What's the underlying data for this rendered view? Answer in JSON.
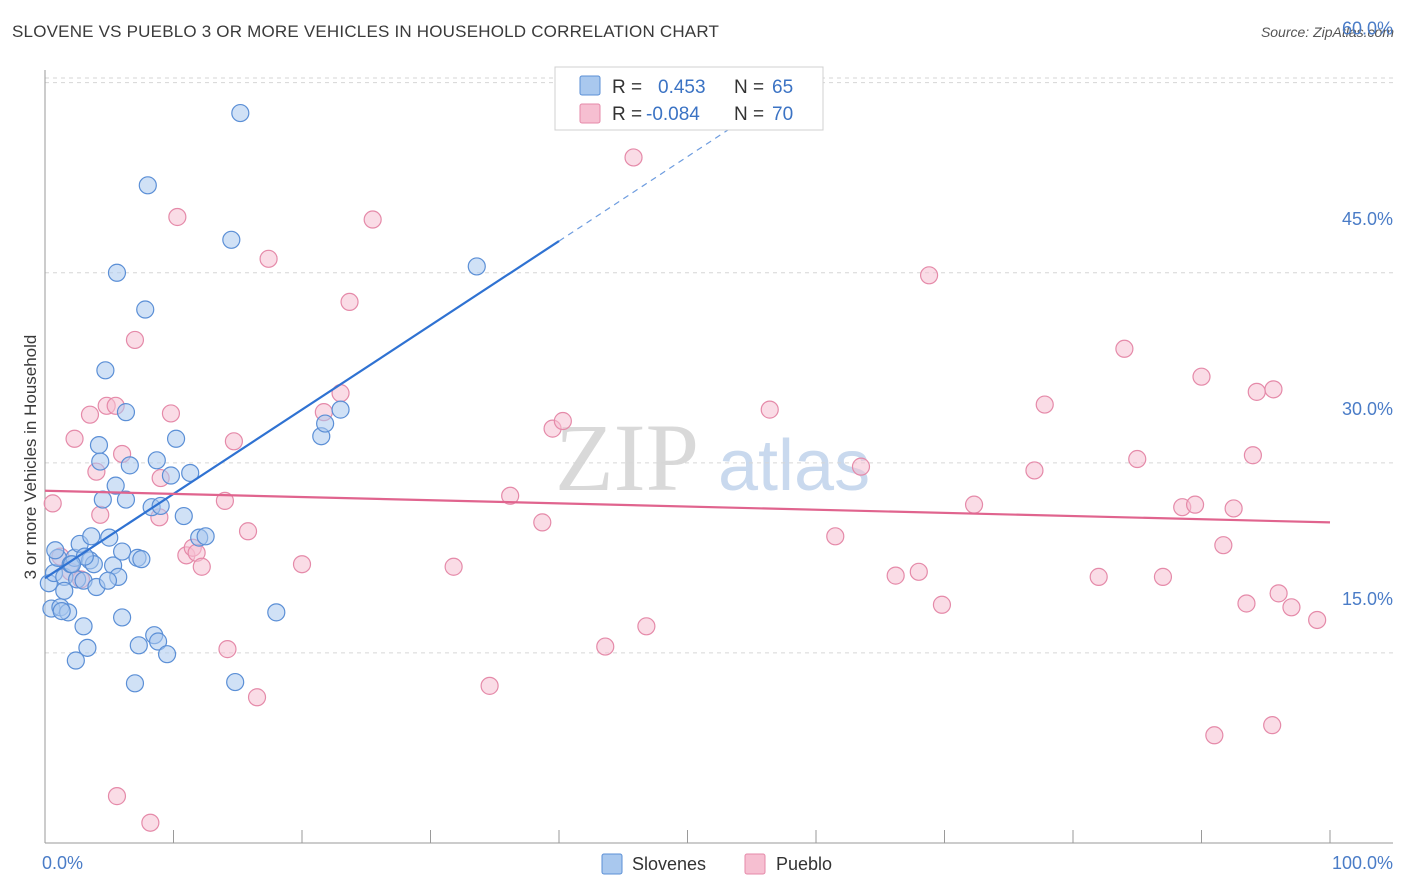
{
  "title": "SLOVENE VS PUEBLO 3 OR MORE VEHICLES IN HOUSEHOLD CORRELATION CHART",
  "source": "Source: ZipAtlas.com",
  "watermark": {
    "zip": "ZIP",
    "atlas": "atlas"
  },
  "colors": {
    "slovenes_fill": "#a9c8ee",
    "slovenes_stroke": "#5b8fd6",
    "slovenes_line": "#2f72d2",
    "pueblo_fill": "#f6bfd1",
    "pueblo_stroke": "#e58aa9",
    "pueblo_line": "#e0648e",
    "axis_label": "#4a7cc7"
  },
  "legend": {
    "rows": [
      {
        "r_label": "R =",
        "r_value": "0.453",
        "n_label": "N =",
        "n_value": "65"
      },
      {
        "r_label": "R =",
        "r_value": "-0.084",
        "n_label": "N =",
        "n_value": "70"
      }
    ]
  },
  "chart_data": {
    "type": "scatter",
    "title": "SLOVENE VS PUEBLO 3 OR MORE VEHICLES IN HOUSEHOLD CORRELATION CHART",
    "xlabel": "",
    "ylabel": "3 or more Vehicles in Household",
    "xlim": [
      0,
      100
    ],
    "ylim": [
      0,
      61
    ],
    "x_tick_labels": [
      "0.0%",
      "100.0%"
    ],
    "y_ticks": [
      15,
      30,
      45,
      60
    ],
    "y_tick_labels": [
      "15.0%",
      "30.0%",
      "45.0%",
      "60.0%"
    ],
    "legend_position": "bottom-center",
    "series": [
      {
        "name": "Slovenes",
        "trend": {
          "x0": 0,
          "y0": 20.9,
          "x1": 40,
          "y1": 47.5,
          "dashed_to_x": 55,
          "dashed_to_y": 57.5
        },
        "points": [
          [
            0.3,
            20.5
          ],
          [
            0.5,
            18.5
          ],
          [
            0.7,
            21.3
          ],
          [
            1.0,
            22.5
          ],
          [
            1.2,
            18.6
          ],
          [
            1.5,
            21.0
          ],
          [
            1.8,
            18.2
          ],
          [
            2.0,
            22.0
          ],
          [
            2.3,
            22.5
          ],
          [
            2.5,
            20.8
          ],
          [
            2.7,
            23.6
          ],
          [
            3.0,
            20.7
          ],
          [
            3.0,
            17.1
          ],
          [
            3.3,
            15.4
          ],
          [
            3.5,
            22.3
          ],
          [
            3.6,
            24.2
          ],
          [
            3.8,
            22.0
          ],
          [
            4.0,
            20.2
          ],
          [
            4.2,
            31.4
          ],
          [
            4.3,
            30.1
          ],
          [
            4.5,
            27.1
          ],
          [
            4.7,
            37.3
          ],
          [
            5.0,
            24.1
          ],
          [
            5.3,
            21.9
          ],
          [
            5.5,
            28.2
          ],
          [
            5.7,
            21.0
          ],
          [
            6.0,
            23.0
          ],
          [
            6.0,
            17.8
          ],
          [
            6.3,
            27.1
          ],
          [
            6.3,
            34.0
          ],
          [
            6.6,
            29.8
          ],
          [
            7.0,
            12.6
          ],
          [
            7.2,
            22.5
          ],
          [
            7.3,
            15.6
          ],
          [
            7.5,
            22.4
          ],
          [
            7.8,
            42.1
          ],
          [
            8.0,
            51.9
          ],
          [
            8.3,
            26.5
          ],
          [
            8.5,
            16.4
          ],
          [
            8.7,
            30.2
          ],
          [
            8.8,
            15.9
          ],
          [
            9.0,
            26.6
          ],
          [
            9.5,
            14.9
          ],
          [
            9.8,
            29.0
          ],
          [
            10.2,
            31.9
          ],
          [
            10.8,
            25.8
          ],
          [
            11.3,
            29.2
          ],
          [
            12.0,
            24.1
          ],
          [
            12.5,
            24.2
          ],
          [
            14.5,
            47.6
          ],
          [
            14.8,
            12.7
          ],
          [
            15.2,
            57.6
          ],
          [
            18.0,
            18.2
          ],
          [
            21.5,
            32.1
          ],
          [
            21.8,
            33.1
          ],
          [
            23.0,
            34.2
          ],
          [
            33.6,
            45.5
          ],
          [
            5.6,
            45.0
          ],
          [
            2.4,
            14.4
          ],
          [
            1.3,
            18.3
          ],
          [
            3.1,
            22.6
          ],
          [
            2.1,
            22.0
          ],
          [
            1.5,
            19.9
          ],
          [
            0.8,
            23.1
          ],
          [
            4.9,
            20.7
          ]
        ]
      },
      {
        "name": "Pueblo",
        "trend": {
          "x0": 0,
          "y0": 27.8,
          "x1": 100,
          "y1": 25.3
        },
        "points": [
          [
            0.6,
            26.8
          ],
          [
            1.2,
            22.6
          ],
          [
            2.0,
            21.4
          ],
          [
            2.3,
            31.9
          ],
          [
            2.8,
            20.8
          ],
          [
            3.5,
            33.8
          ],
          [
            4.0,
            29.3
          ],
          [
            4.3,
            25.9
          ],
          [
            4.8,
            34.5
          ],
          [
            5.5,
            34.5
          ],
          [
            5.6,
            3.7
          ],
          [
            6.0,
            30.7
          ],
          [
            7.0,
            39.7
          ],
          [
            8.2,
            1.6
          ],
          [
            8.9,
            25.7
          ],
          [
            9.0,
            28.8
          ],
          [
            9.8,
            33.9
          ],
          [
            10.3,
            49.4
          ],
          [
            11.0,
            22.7
          ],
          [
            11.5,
            23.3
          ],
          [
            11.8,
            22.9
          ],
          [
            12.2,
            21.8
          ],
          [
            14.0,
            27.0
          ],
          [
            14.2,
            15.3
          ],
          [
            14.7,
            31.7
          ],
          [
            15.8,
            24.6
          ],
          [
            16.5,
            11.5
          ],
          [
            17.4,
            46.1
          ],
          [
            20.0,
            22.0
          ],
          [
            21.7,
            34.0
          ],
          [
            23.0,
            35.5
          ],
          [
            23.7,
            42.7
          ],
          [
            25.5,
            49.2
          ],
          [
            31.8,
            21.8
          ],
          [
            34.6,
            12.4
          ],
          [
            36.2,
            27.4
          ],
          [
            38.7,
            25.3
          ],
          [
            39.5,
            32.7
          ],
          [
            40.3,
            33.3
          ],
          [
            43.6,
            15.5
          ],
          [
            45.8,
            54.1
          ],
          [
            46.8,
            17.1
          ],
          [
            56.4,
            34.2
          ],
          [
            61.5,
            24.2
          ],
          [
            63.5,
            29.7
          ],
          [
            66.2,
            21.1
          ],
          [
            68.0,
            21.4
          ],
          [
            68.8,
            44.8
          ],
          [
            69.8,
            18.8
          ],
          [
            72.3,
            26.7
          ],
          [
            77.0,
            29.4
          ],
          [
            77.8,
            34.6
          ],
          [
            82.0,
            21.0
          ],
          [
            84.0,
            39.0
          ],
          [
            85.0,
            30.3
          ],
          [
            87.0,
            21.0
          ],
          [
            88.5,
            26.5
          ],
          [
            89.5,
            26.7
          ],
          [
            90.0,
            36.8
          ],
          [
            91.0,
            8.5
          ],
          [
            91.7,
            23.5
          ],
          [
            92.5,
            26.4
          ],
          [
            93.5,
            18.9
          ],
          [
            94.0,
            30.6
          ],
          [
            99.0,
            17.6
          ],
          [
            97.0,
            18.6
          ],
          [
            95.5,
            9.3
          ],
          [
            96.0,
            19.7
          ],
          [
            94.3,
            35.6
          ],
          [
            95.6,
            35.8
          ]
        ]
      }
    ]
  },
  "bottom_legend": [
    {
      "label": "Slovenes"
    },
    {
      "label": "Pueblo"
    }
  ]
}
